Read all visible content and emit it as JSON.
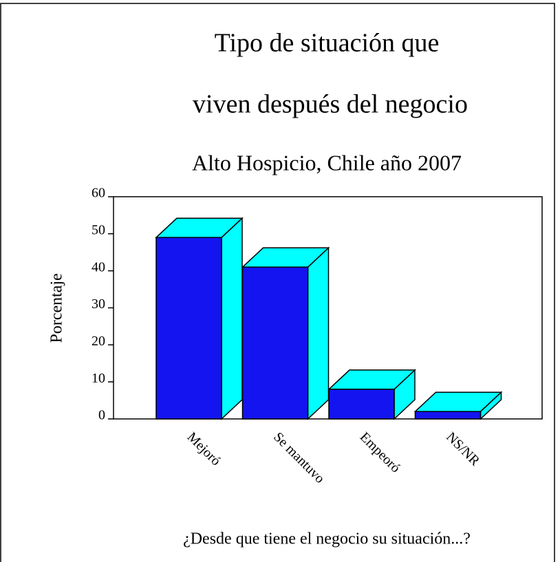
{
  "chart_data": {
    "type": "bar3d",
    "title": [
      "Tipo de situación que",
      "viven después del negocio"
    ],
    "subtitle": "Alto Hospicio, Chile año 2007",
    "xlabel": "¿Desde que tiene el negocio su situación...?",
    "ylabel": "Porcentaje",
    "categories": [
      "Mejoró",
      "Se mantuvo",
      "Empeoró",
      "NS/NR"
    ],
    "values": [
      49,
      41,
      8,
      2
    ],
    "color": "#1414f0",
    "side_color": "#00ffff",
    "ylim": [
      0,
      60
    ],
    "yticks": [
      0,
      10,
      20,
      30,
      40,
      50,
      60
    ]
  }
}
